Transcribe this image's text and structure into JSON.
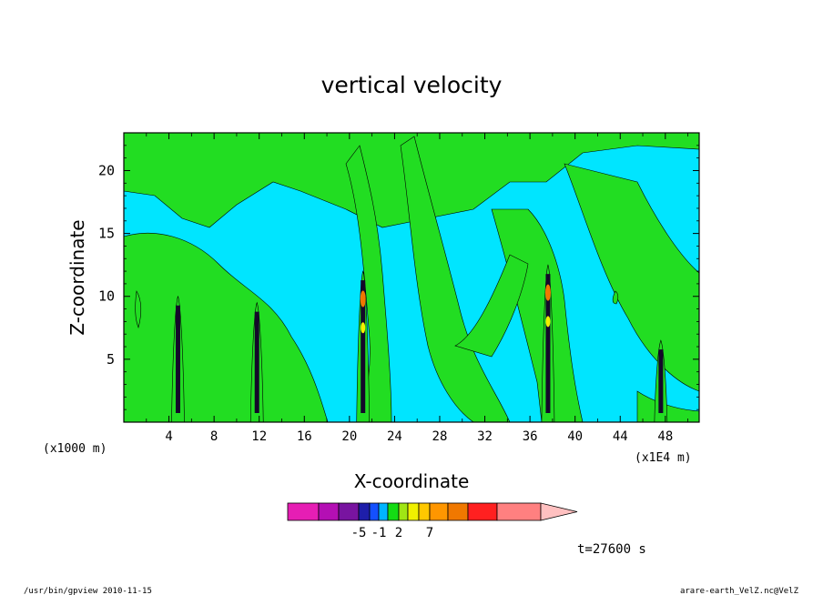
{
  "chart_data": {
    "type": "heatmap",
    "title": "vertical velocity",
    "xlabel": "X-coordinate",
    "ylabel": "Z-coordinate",
    "x_unit_left": "(x1000 m)",
    "x_unit_right": "(x1E4 m)",
    "xlim": [
      0,
      51
    ],
    "ylim": [
      0,
      23
    ],
    "x_ticks": [
      "4",
      "8",
      "12",
      "16",
      "20",
      "24",
      "28",
      "32",
      "36",
      "40",
      "44",
      "48"
    ],
    "x_tick_values": [
      4,
      8,
      12,
      16,
      20,
      24,
      28,
      32,
      36,
      40,
      44,
      48
    ],
    "y_ticks": [
      "5",
      "10",
      "15",
      "20"
    ],
    "y_tick_values": [
      5,
      10,
      15,
      20
    ],
    "background_level_color": "#00e5ff",
    "fill_level_color": "#22dd22",
    "updraft_columns_x": [
      4.8,
      11.8,
      21.2,
      37.6,
      47.6
    ],
    "colorbar": {
      "colors": [
        "#e61eb4",
        "#b40fb4",
        "#7814a0",
        "#1e1eaa",
        "#1450ff",
        "#00b4ff",
        "#14dc14",
        "#a0e614",
        "#f0f000",
        "#ffc800",
        "#ff9600",
        "#f07800",
        "#ff2020",
        "#ff8080"
      ],
      "extend_color": "#ffc0c0",
      "labels": [
        "-5",
        "-1",
        "2",
        "7"
      ]
    },
    "time_label": "t=27600 s"
  },
  "footer": {
    "left": "/usr/bin/gpview   2010-11-15",
    "right": "arare-earth_VelZ.nc@VelZ"
  }
}
